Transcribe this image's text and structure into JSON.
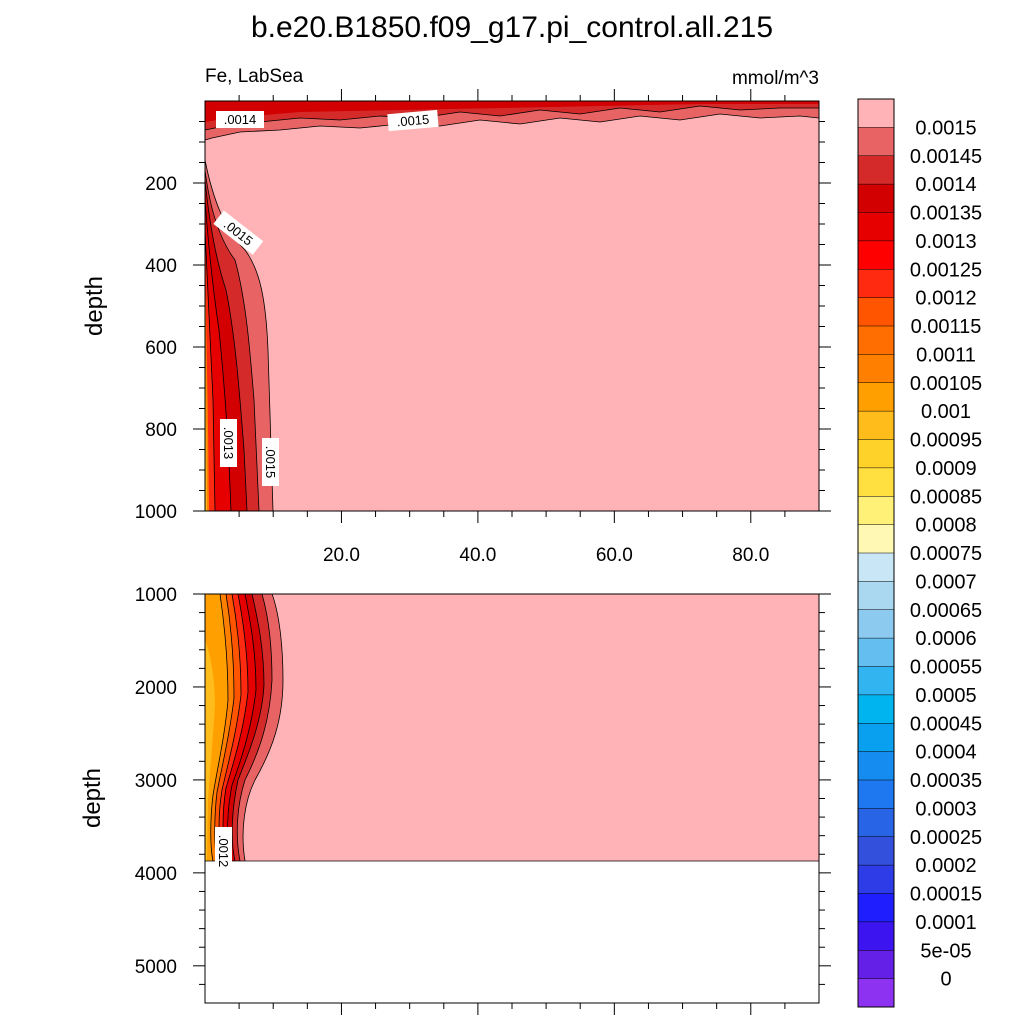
{
  "chart_data": {
    "type": "heatmap",
    "title": "b.e20.B1850.f09_g17.pi_control.all.215",
    "left_subtitle": "Fe, LabSea",
    "right_subtitle": "mmol/m^3",
    "panels": [
      {
        "ylabel": "depth",
        "ylim": [
          0,
          1000
        ],
        "xlim": [
          0,
          90
        ],
        "y_ticks": [
          "200",
          "400",
          "600",
          "800",
          "1000"
        ],
        "x_ticks": [
          "20.0",
          "40.0",
          "60.0",
          "80.0"
        ],
        "contour_labels": [
          ".0014",
          ".0015",
          ".0015",
          ".0013",
          ".0015"
        ]
      },
      {
        "ylabel": "depth",
        "ylim": [
          1000,
          5400
        ],
        "xlim": [
          0,
          90
        ],
        "y_ticks": [
          "1000",
          "2000",
          "3000",
          "4000",
          "5000"
        ],
        "contour_labels": [
          ".0012"
        ],
        "bottom_depth": 3870
      }
    ],
    "colorbar": {
      "levels": [
        "0.0015",
        "0.00145",
        "0.0014",
        "0.00135",
        "0.0013",
        "0.00125",
        "0.0012",
        "0.00115",
        "0.0011",
        "0.00105",
        "0.001",
        "0.00095",
        "0.0009",
        "0.00085",
        "0.0008",
        "0.00075",
        "0.0007",
        "0.00065",
        "0.0006",
        "0.00055",
        "0.0005",
        "0.00045",
        "0.0004",
        "0.00035",
        "0.0003",
        "0.00025",
        "0.0002",
        "0.00015",
        "0.0001",
        "5e-05",
        "0"
      ],
      "colors": [
        "#ffb3b6",
        "#e86464",
        "#d42a2a",
        "#d20000",
        "#e60000",
        "#ff0000",
        "#ff2a10",
        "#ff5500",
        "#ff6e00",
        "#ff8000",
        "#ffa000",
        "#ffbc1a",
        "#ffd22a",
        "#ffe040",
        "#fff078",
        "#fff8b4",
        "#c8e6f5",
        "#aad8f0",
        "#8ccaf0",
        "#64bef0",
        "#32b4f0",
        "#00b4f0",
        "#0aa0f0",
        "#148cf0",
        "#1e78f0",
        "#2864e6",
        "#3250dc",
        "#2d3ce6",
        "#1e1eff",
        "#3c14f0",
        "#6420e6",
        "#8c32f0"
      ]
    }
  }
}
